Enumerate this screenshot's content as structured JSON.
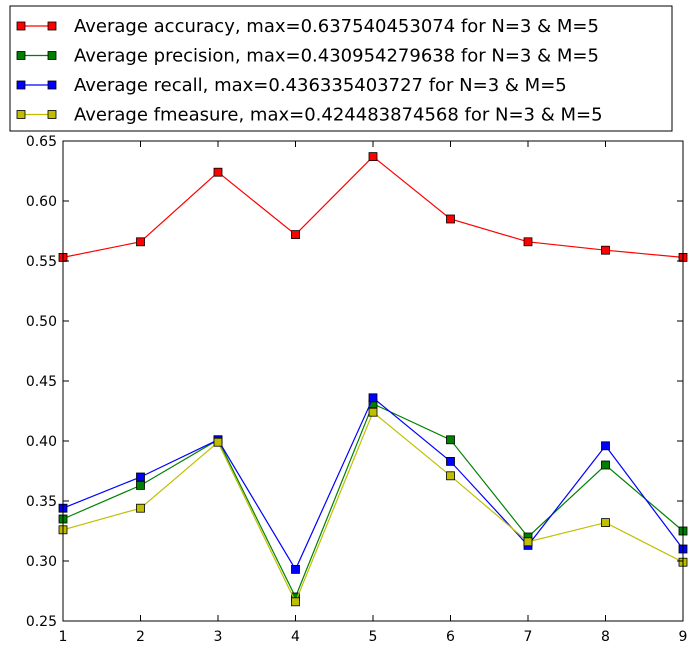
{
  "chart_data": {
    "type": "line",
    "title": "",
    "xlabel": "",
    "ylabel": "",
    "xlim": [
      1,
      9
    ],
    "ylim": [
      0.25,
      0.65
    ],
    "x": [
      1,
      2,
      3,
      4,
      5,
      6,
      7,
      8,
      9
    ],
    "x_ticks": [
      "1",
      "2",
      "3",
      "4",
      "5",
      "6",
      "7",
      "8",
      "9"
    ],
    "y_ticks": [
      "0.25",
      "0.30",
      "0.35",
      "0.40",
      "0.45",
      "0.50",
      "0.55",
      "0.60",
      "0.65"
    ],
    "grid": false,
    "legend_position": "top",
    "series": [
      {
        "name": "Average accuracy, max=0.637540453074 for N=3 & M=5",
        "color": "#ff0000",
        "marker_color": "#ff0000",
        "values": [
          0.553,
          0.566,
          0.624,
          0.572,
          0.637,
          0.585,
          0.566,
          0.559,
          0.553
        ]
      },
      {
        "name": "Average precision, max=0.430954279638 for N=3 & M=5",
        "color": "#008000",
        "marker_color": "#008000",
        "values": [
          0.335,
          0.363,
          0.401,
          0.27,
          0.431,
          0.401,
          0.32,
          0.38,
          0.325
        ]
      },
      {
        "name": "Average recall, max=0.436335403727 for N=3 & M=5",
        "color": "#0000ff",
        "marker_color": "#0000ff",
        "values": [
          0.344,
          0.37,
          0.401,
          0.293,
          0.436,
          0.383,
          0.313,
          0.396,
          0.31
        ]
      },
      {
        "name": "Average fmeasure, max=0.424483874568 for N=3 & M=5",
        "color": "#bfbf00",
        "marker_color": "#bfbf00",
        "values": [
          0.326,
          0.344,
          0.399,
          0.266,
          0.424,
          0.371,
          0.316,
          0.332,
          0.299
        ]
      }
    ]
  }
}
